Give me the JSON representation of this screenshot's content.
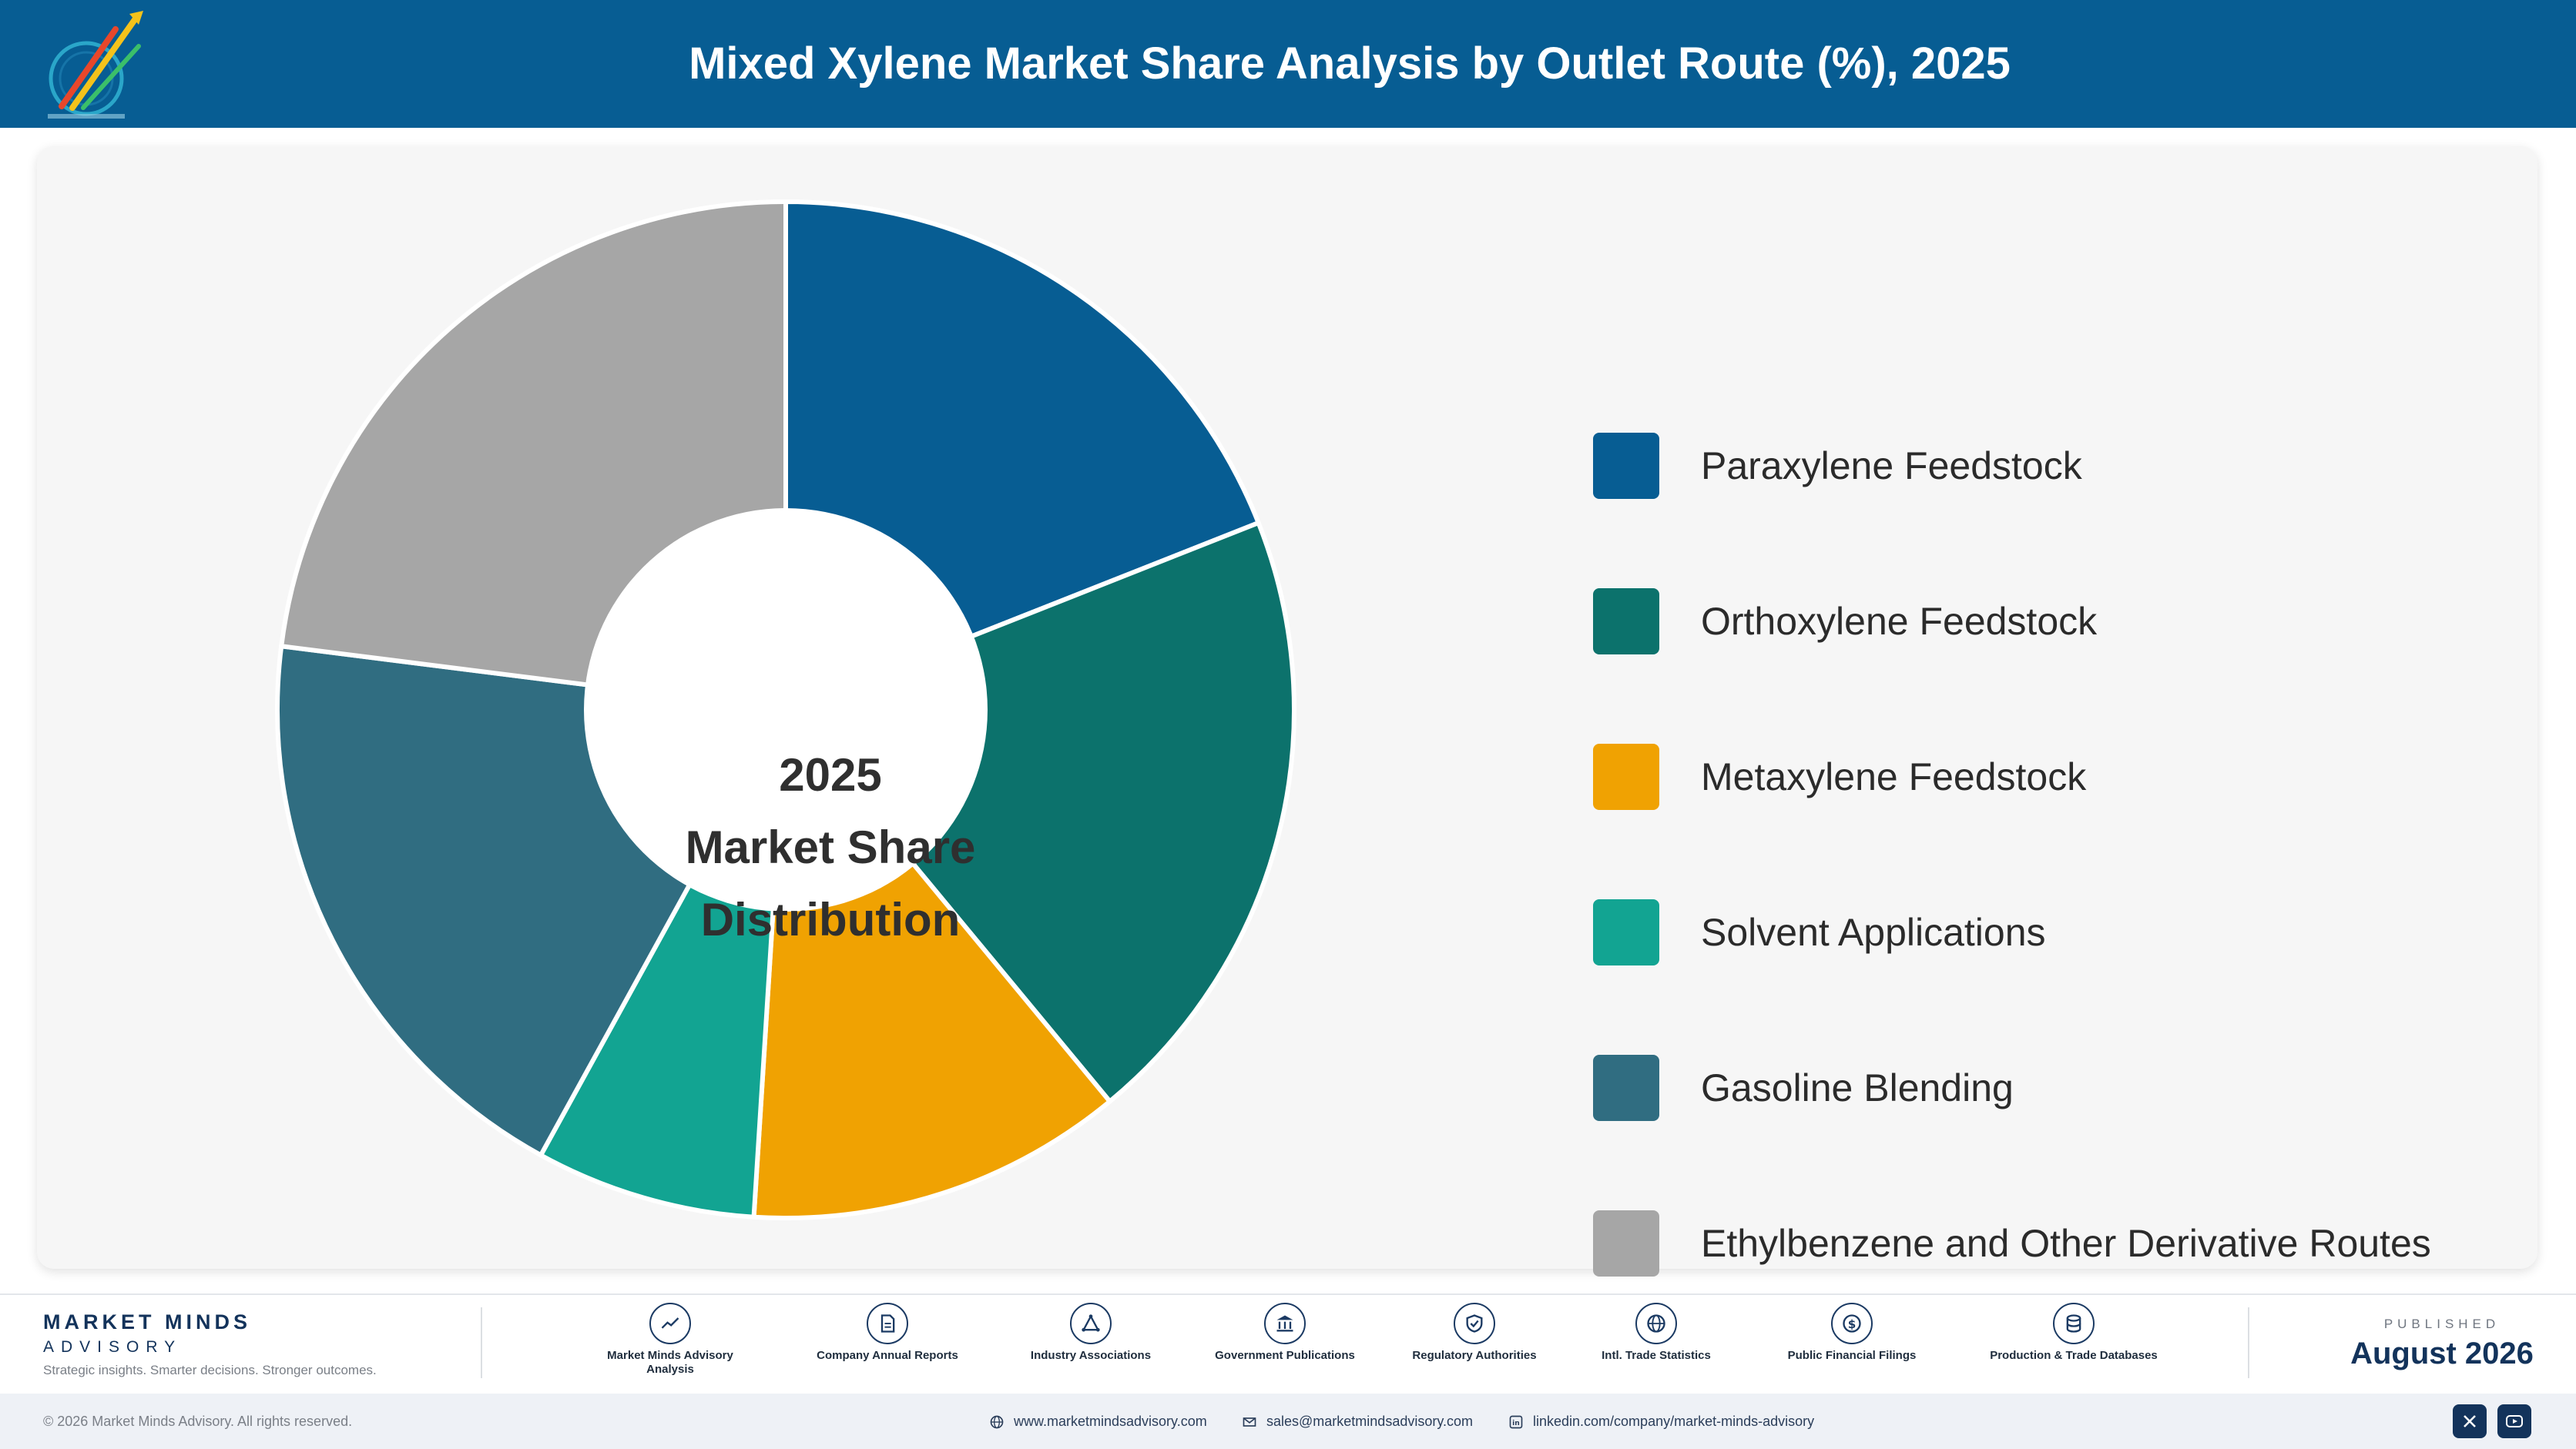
{
  "header": {
    "title": "Mixed Xylene Market Share Analysis by Outlet Route (%), 2025",
    "brand_color": "#075d93"
  },
  "chart_data": {
    "type": "pie",
    "donut": true,
    "center_label": [
      "2025",
      "Market Share",
      "Distribution"
    ],
    "legend_position": "right",
    "series": [
      {
        "name": "Paraxylene Feedstock",
        "value": 19,
        "color": "#075d93"
      },
      {
        "name": "Orthoxylene Feedstock",
        "value": 20,
        "color": "#0c726c"
      },
      {
        "name": "Metaxylene Feedstock",
        "value": 12,
        "color": "#f0a202"
      },
      {
        "name": "Solvent Applications",
        "value": 7,
        "color": "#12a492"
      },
      {
        "name": "Gasoline Blending",
        "value": 19,
        "color": "#306d81"
      },
      {
        "name": "Ethylbenzene and Other Derivative Routes",
        "value": 23,
        "color": "#a6a6a6"
      }
    ]
  },
  "footer": {
    "brand_name": "MARKET MINDS",
    "brand_sub": "ADVISORY",
    "tagline": "Strategic insights. Smarter decisions. Stronger outcomes.",
    "sources": [
      {
        "label": "Market Minds Advisory Analysis",
        "icon": "chart-line-icon"
      },
      {
        "label": "Company Annual Reports",
        "icon": "document-icon"
      },
      {
        "label": "Industry Associations",
        "icon": "network-icon"
      },
      {
        "label": "Government Publications",
        "icon": "building-icon"
      },
      {
        "label": "Regulatory Authorities",
        "icon": "shield-icon"
      },
      {
        "label": "Intl. Trade Statistics",
        "icon": "globe-icon"
      },
      {
        "label": "Public Financial Filings",
        "icon": "dollar-icon"
      },
      {
        "label": "Production & Trade Databases",
        "icon": "database-icon"
      }
    ],
    "published_label": "PUBLISHED",
    "published_date": "August 2026",
    "copyright": "© 2026 Market Minds Advisory. All rights reserved.",
    "website": "www.marketmindsadvisory.com",
    "email": "sales@marketmindsadvisory.com",
    "linkedin": "linkedin.com/company/market-minds-advisory"
  }
}
